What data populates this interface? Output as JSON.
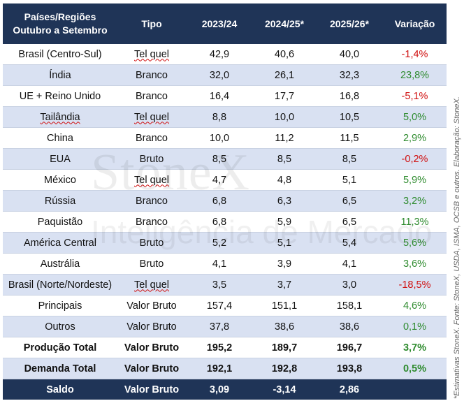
{
  "header": {
    "col1_line1": "Países/Regiões",
    "col1_line2": "Outubro a Setembro",
    "tipo": "Tipo",
    "y1": "2023/24",
    "y2": "2024/25*",
    "y3": "2025/26*",
    "variacao": "Variação"
  },
  "rows": [
    {
      "region": "Brasil (Centro-Sul)",
      "tipo": "Tel quel",
      "y1": "42,9",
      "y2": "40,6",
      "y3": "40,0",
      "var": "-1,4%",
      "var_sign": "neg"
    },
    {
      "region": "Índia",
      "tipo": "Branco",
      "y1": "32,0",
      "y2": "26,1",
      "y3": "32,3",
      "var": "23,8%",
      "var_sign": "pos"
    },
    {
      "region": "UE + Reino Unido",
      "tipo": "Branco",
      "y1": "16,4",
      "y2": "17,7",
      "y3": "16,8",
      "var": "-5,1%",
      "var_sign": "neg"
    },
    {
      "region": "Tailândia",
      "tipo": "Tel quel",
      "y1": "8,8",
      "y2": "10,0",
      "y3": "10,5",
      "var": "5,0%",
      "var_sign": "pos"
    },
    {
      "region": "China",
      "tipo": "Branco",
      "y1": "10,0",
      "y2": "11,2",
      "y3": "11,5",
      "var": "2,9%",
      "var_sign": "pos"
    },
    {
      "region": "EUA",
      "tipo": "Bruto",
      "y1": "8,5",
      "y2": "8,5",
      "y3": "8,5",
      "var": "-0,2%",
      "var_sign": "neg"
    },
    {
      "region": "México",
      "tipo": "Tel quel",
      "y1": "4,7",
      "y2": "4,8",
      "y3": "5,1",
      "var": "5,9%",
      "var_sign": "pos"
    },
    {
      "region": "Rússia",
      "tipo": "Branco",
      "y1": "6,8",
      "y2": "6,3",
      "y3": "6,5",
      "var": "3,2%",
      "var_sign": "pos"
    },
    {
      "region": "Paquistão",
      "tipo": "Branco",
      "y1": "6,8",
      "y2": "5,9",
      "y3": "6,5",
      "var": "11,3%",
      "var_sign": "pos"
    },
    {
      "region": "América Central",
      "tipo": "Bruto",
      "y1": "5,2",
      "y2": "5,1",
      "y3": "5,4",
      "var": "5,6%",
      "var_sign": "pos"
    },
    {
      "region": "Austrália",
      "tipo": "Bruto",
      "y1": "4,1",
      "y2": "3,9",
      "y3": "4,1",
      "var": "3,6%",
      "var_sign": "pos"
    },
    {
      "region": "Brasil (Norte/Nordeste)",
      "tipo": "Tel quel",
      "y1": "3,5",
      "y2": "3,7",
      "y3": "3,0",
      "var": "-18,5%",
      "var_sign": "neg"
    }
  ],
  "summary": [
    {
      "region": "Principais",
      "tipo": "Valor Bruto",
      "y1": "157,4",
      "y2": "151,1",
      "y3": "158,1",
      "var": "4,6%",
      "var_sign": "pos"
    },
    {
      "region": "Outros",
      "tipo": "Valor Bruto",
      "y1": "37,8",
      "y2": "38,6",
      "y3": "38,6",
      "var": "0,1%",
      "var_sign": "pos"
    },
    {
      "region": "Produção Total",
      "tipo": "Valor Bruto",
      "y1": "195,2",
      "y2": "189,7",
      "y3": "196,7",
      "var": "3,7%",
      "var_sign": "pos"
    },
    {
      "region": "Demanda Total",
      "tipo": "Valor Bruto",
      "y1": "192,1",
      "y2": "192,8",
      "y3": "193,8",
      "var": "0,5%",
      "var_sign": "pos"
    }
  ],
  "total": {
    "region": "Saldo",
    "tipo": "Valor Bruto",
    "y1": "3,09",
    "y2": "-3,14",
    "y3": "2,86"
  },
  "watermark": {
    "brand": "StoneX",
    "line2": "Inteligência de Mercado"
  },
  "footnote": "*Estimativas StoneX. Fonte: StoneX, USDA, ISMA, OCSB e outros. Elaboração: StoneX.",
  "colors": {
    "header_bg": "#1f3457",
    "alt_row": "#d9e1f2",
    "negative": "#d01010",
    "positive": "#2e8b2e"
  }
}
